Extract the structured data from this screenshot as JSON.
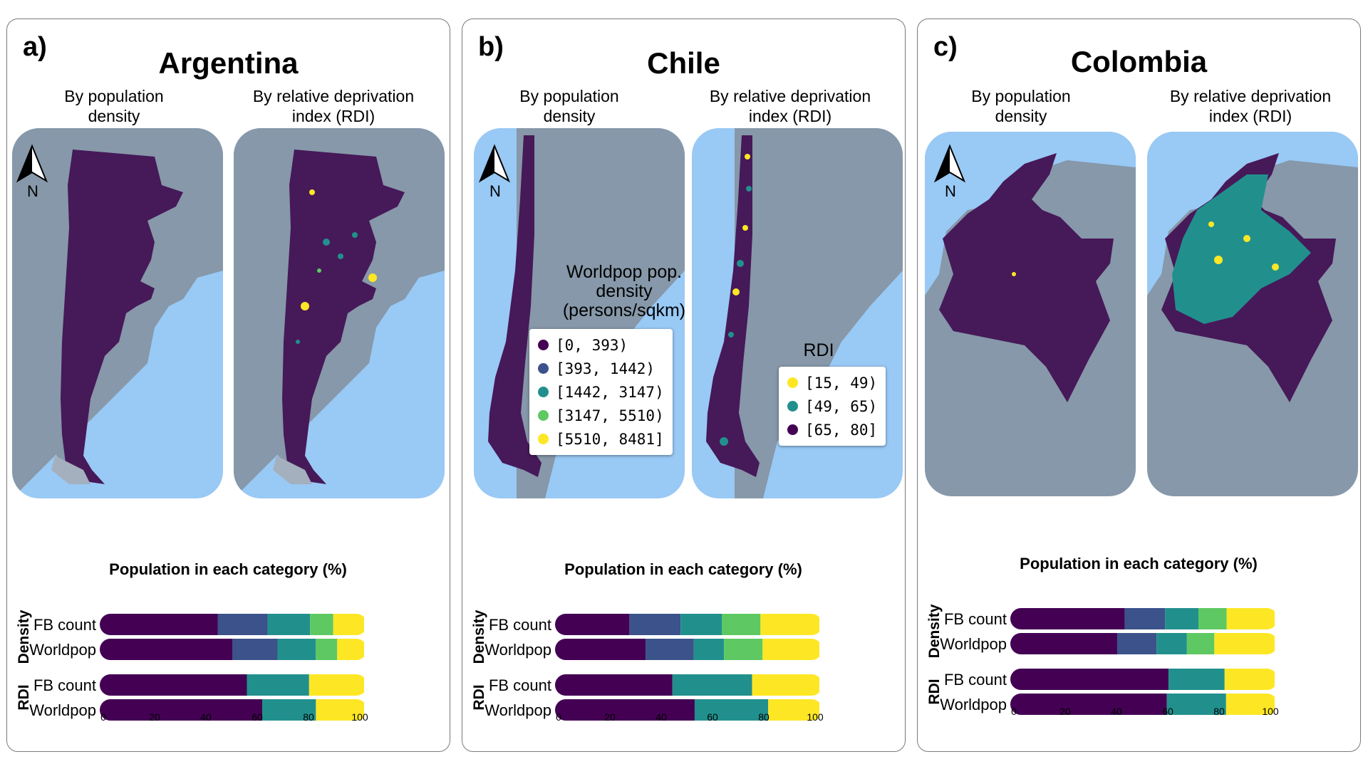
{
  "colors": {
    "c1": "#440154",
    "c2": "#3b528b",
    "c3": "#21908d",
    "c4": "#5ec962",
    "c5": "#fde725",
    "water": "#99c9f5",
    "land": "#8698a9",
    "country": "#461959"
  },
  "map_labels": {
    "density": "By population density",
    "rdi": "By relative deprivation index (RDI)",
    "north": "N"
  },
  "panels": [
    {
      "letter": "a)",
      "title": "Argentina",
      "density_label": [
        "By population",
        "density"
      ],
      "rdi_label": [
        "By relative deprivation",
        "index (RDI)"
      ]
    },
    {
      "letter": "b)",
      "title": "Chile",
      "density_label": [
        "By population",
        "density"
      ],
      "rdi_label": [
        "By relative deprivation",
        "index (RDI)"
      ],
      "density_legend": {
        "title": [
          "Worldpop pop.",
          "density",
          "(persons/sqkm)"
        ],
        "items": [
          "[0, 393)",
          "[393, 1442)",
          "[1442, 3147)",
          "[3147, 5510)",
          "[5510, 8481]"
        ]
      },
      "rdi_legend": {
        "title": [
          "RDI"
        ],
        "items": [
          "[15, 49)",
          "[49, 65)",
          "[65, 80]"
        ]
      }
    },
    {
      "letter": "c)",
      "title": "Colombia",
      "density_label": [
        "By population",
        "density"
      ],
      "rdi_label": [
        "By relative deprivation",
        "index (RDI)"
      ]
    }
  ],
  "chart_data": [
    {
      "type": "bar",
      "orientation": "horizontal-stacked",
      "title": "Population in each category (%)",
      "xlim": [
        0,
        100
      ],
      "xticks": [
        0,
        20,
        40,
        60,
        80,
        100
      ],
      "groups": [
        {
          "name": "Density",
          "rows": [
            {
              "label": "FB count",
              "values": [
                46.5,
                20.3,
                17.3,
                9.4,
                10.8
              ]
            },
            {
              "label": "Worldpop",
              "values": [
                52.6,
                18.3,
                15.6,
                8.7,
                9.2
              ]
            }
          ]
        },
        {
          "name": "RDI",
          "rows": [
            {
              "label": "FB count",
              "values": [
                58.6,
                25.4,
                20.7
              ]
            },
            {
              "label": "Worldpop",
              "values": [
                64.8,
                21.9,
                17.9
              ]
            }
          ]
        }
      ]
    },
    {
      "type": "bar",
      "orientation": "horizontal-stacked",
      "title": "Population in each category (%)",
      "xlim": [
        0,
        100
      ],
      "xticks": [
        0,
        20,
        40,
        60,
        80,
        100
      ],
      "groups": [
        {
          "name": "Density",
          "rows": [
            {
              "label": "FB count",
              "values": [
                28.9,
                20.9,
                16.8,
                15.8,
                22.3
              ]
            },
            {
              "label": "Worldpop",
              "values": [
                35.6,
                19.7,
                12.4,
                15.8,
                21.5
              ]
            }
          ]
        },
        {
          "name": "RDI",
          "rows": [
            {
              "label": "FB count",
              "values": [
                46.6,
                32.6,
                25.8
              ]
            },
            {
              "label": "Worldpop",
              "values": [
                55.7,
                30.1,
                19.2
              ]
            }
          ]
        }
      ]
    },
    {
      "type": "bar",
      "orientation": "horizontal-stacked",
      "title": "Population in each category (%)",
      "xlim": [
        0,
        100
      ],
      "xticks": [
        0,
        20,
        40,
        60,
        80,
        100
      ],
      "groups": [
        {
          "name": "Density",
          "rows": [
            {
              "label": "FB count",
              "values": [
                45.3,
                16.5,
                13.6,
                11.5,
                17.9
              ]
            },
            {
              "label": "Worldpop",
              "values": [
                42.2,
                16.1,
                12.4,
                11.2,
                22.9
              ]
            }
          ]
        },
        {
          "name": "RDI",
          "rows": [
            {
              "label": "FB count",
              "values": [
                63.2,
                22.9,
                18.7
              ]
            },
            {
              "label": "Worldpop",
              "values": [
                62.5,
                24.2,
                18.1
              ]
            }
          ]
        }
      ]
    }
  ]
}
